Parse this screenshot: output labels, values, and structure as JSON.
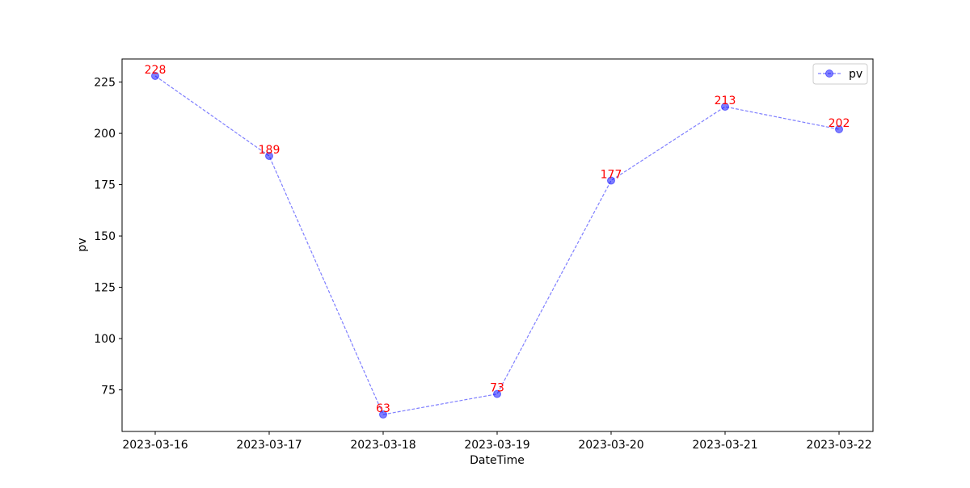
{
  "chart_data": {
    "type": "line",
    "title": "",
    "xlabel": "DateTime",
    "ylabel": "pv",
    "x": [
      "2023-03-16",
      "2023-03-17",
      "2023-03-18",
      "2023-03-19",
      "2023-03-20",
      "2023-03-21",
      "2023-03-22"
    ],
    "series": [
      {
        "name": "pv",
        "values": [
          228,
          189,
          63,
          73,
          177,
          213,
          202
        ],
        "color": "#0000ff",
        "line_style": "dashed",
        "marker": "circle",
        "alpha": 0.5
      }
    ],
    "data_labels": {
      "show": true,
      "color": "#ff0000"
    },
    "yticks": [
      75,
      100,
      125,
      150,
      175,
      200,
      225
    ],
    "ylim": [
      54.75,
      236.25
    ],
    "grid": false,
    "legend": {
      "position": "top-right",
      "entries": [
        "pv"
      ]
    }
  }
}
